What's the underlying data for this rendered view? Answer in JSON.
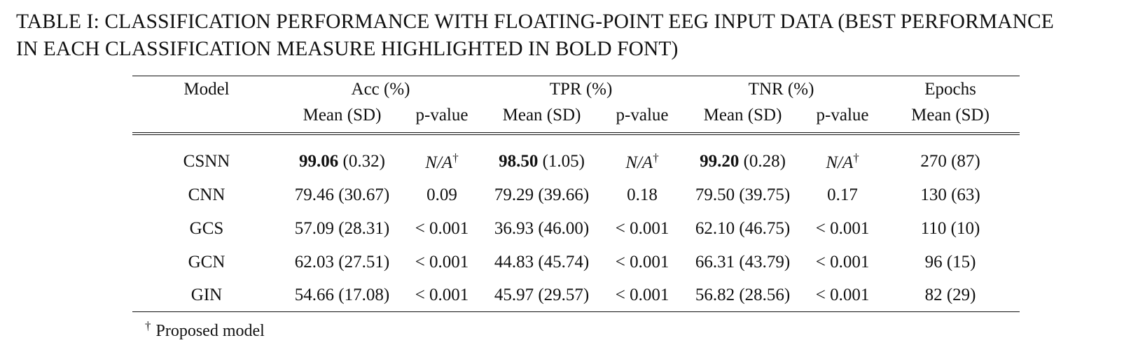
{
  "caption": {
    "line1": "TABLE I: CLASSIFICATION PERFORMANCE WITH FLOATING-POINT EEG INPUT DATA (BEST PERFORMANCE",
    "line2": "IN EACH CLASSIFICATION MEASURE HIGHLIGHTED IN BOLD FONT)"
  },
  "header": {
    "model": "Model",
    "acc": "Acc (%)",
    "tpr": "TPR (%)",
    "tnr": "TNR (%)",
    "epochs": "Epochs",
    "mean_sd": "Mean (SD)",
    "p_value": "p-value"
  },
  "rows": [
    {
      "model": "CSNN",
      "acc_mean": "99.06",
      "acc_sd": " (0.32)",
      "acc_p": "N/A",
      "tpr_mean": "98.50",
      "tpr_sd": " (1.05)",
      "tpr_p": "N/A",
      "tnr_mean": "99.20",
      "tnr_sd": " (0.28)",
      "tnr_p": "N/A",
      "epochs": "270 (87)"
    },
    {
      "model": "CNN",
      "acc": "79.46 (30.67)",
      "acc_p": "0.09",
      "tpr": "79.29 (39.66)",
      "tpr_p": "0.18",
      "tnr": "79.50 (39.75)",
      "tnr_p": "0.17",
      "epochs": "130 (63)"
    },
    {
      "model": "GCS",
      "acc": "57.09 (28.31)",
      "acc_p": "< 0.001",
      "tpr": "36.93 (46.00)",
      "tpr_p": "< 0.001",
      "tnr": "62.10 (46.75)",
      "tnr_p": "< 0.001",
      "epochs": "110 (10)"
    },
    {
      "model": "GCN",
      "acc": "62.03 (27.51)",
      "acc_p": "< 0.001",
      "tpr": "44.83 (45.74)",
      "tpr_p": "< 0.001",
      "tnr": "66.31 (43.79)",
      "tnr_p": "< 0.001",
      "epochs": "96 (15)"
    },
    {
      "model": "GIN",
      "acc": "54.66 (17.08)",
      "acc_p": "< 0.001",
      "tpr": "45.97 (29.57)",
      "tpr_p": "< 0.001",
      "tnr": "56.82 (28.56)",
      "tnr_p": "< 0.001",
      "epochs": "82 (29)"
    }
  ],
  "dagger": "†",
  "footnote": "Proposed model"
}
